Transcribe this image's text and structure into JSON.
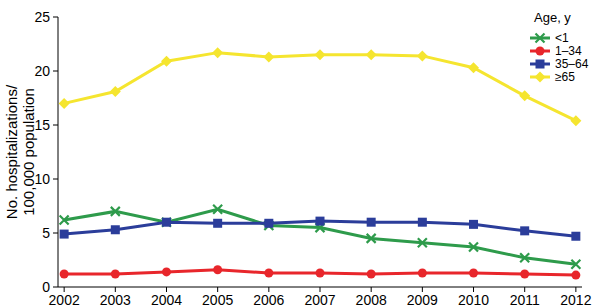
{
  "chart_data": {
    "type": "line",
    "ylabel": "No. hospitalizations/\n100,000 population",
    "legend_title": "Age, y",
    "legend": "upper right",
    "x": [
      2002,
      2003,
      2004,
      2005,
      2006,
      2007,
      2008,
      2009,
      2010,
      2011,
      2012
    ],
    "xlim": [
      2001.88,
      2012.12
    ],
    "xticks": [
      2002,
      2003,
      2004,
      2005,
      2006,
      2007,
      2008,
      2009,
      2010,
      2011,
      2012
    ],
    "ylim": [
      0,
      25
    ],
    "yticks": [
      0,
      5,
      10,
      15,
      20,
      25
    ],
    "grid": false,
    "series": [
      {
        "name": "<1",
        "color": "#2e9b4b",
        "marker": "x",
        "values": [
          6.2,
          7.0,
          6.0,
          7.2,
          5.7,
          5.5,
          4.5,
          4.1,
          3.7,
          2.7,
          2.1
        ]
      },
      {
        "name": "1–34",
        "color": "#e8262b",
        "marker": "circle",
        "values": [
          1.2,
          1.2,
          1.4,
          1.6,
          1.3,
          1.3,
          1.2,
          1.3,
          1.3,
          1.2,
          1.1
        ]
      },
      {
        "name": "35–64",
        "color": "#2b3d9a",
        "marker": "square",
        "values": [
          4.9,
          5.3,
          6.0,
          5.9,
          5.9,
          6.1,
          6.0,
          6.0,
          5.8,
          5.2,
          4.7
        ]
      },
      {
        "name": "≥65",
        "color": "#f5e52f",
        "marker": "diamond",
        "values": [
          17.0,
          18.1,
          20.9,
          21.7,
          21.3,
          21.5,
          21.5,
          21.4,
          20.3,
          17.7,
          15.4
        ]
      }
    ]
  }
}
